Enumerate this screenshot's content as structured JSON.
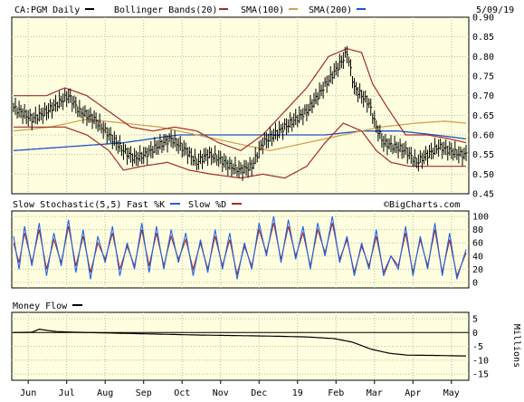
{
  "chart_data": [
    {
      "type": "line",
      "panel": "price",
      "header": {
        "symbol": "CA:PGM Daily",
        "bollinger": "Bollinger Bands(20)",
        "sma100": "SMA(100)",
        "sma200": "SMA(200)",
        "date": "5/09/19"
      },
      "x_labels": [
        "Jun",
        "Jul",
        "Aug",
        "Sep",
        "Oct",
        "Nov",
        "Dec",
        "19",
        "Feb",
        "Mar",
        "Apr",
        "May"
      ],
      "x_label_index": [
        8,
        29,
        50,
        71,
        92,
        113,
        134,
        155,
        176,
        197,
        218,
        239
      ],
      "n_bars": 248,
      "ylim": [
        0.45,
        0.9
      ],
      "yticks": [
        "0.90",
        "0.85",
        "0.80",
        "0.75",
        "0.70",
        "0.65",
        "0.60",
        "0.55",
        "0.50",
        "0.45"
      ],
      "ytick_values": [
        0.9,
        0.85,
        0.8,
        0.75,
        0.7,
        0.65,
        0.6,
        0.55,
        0.5,
        0.45
      ],
      "grid": true,
      "anchors_price": [
        [
          0,
          0.67
        ],
        [
          10,
          0.64
        ],
        [
          18,
          0.66
        ],
        [
          24,
          0.68
        ],
        [
          30,
          0.7
        ],
        [
          36,
          0.66
        ],
        [
          44,
          0.64
        ],
        [
          52,
          0.6
        ],
        [
          60,
          0.56
        ],
        [
          66,
          0.54
        ],
        [
          72,
          0.55
        ],
        [
          78,
          0.57
        ],
        [
          86,
          0.59
        ],
        [
          94,
          0.56
        ],
        [
          100,
          0.53
        ],
        [
          106,
          0.55
        ],
        [
          112,
          0.54
        ],
        [
          118,
          0.52
        ],
        [
          124,
          0.51
        ],
        [
          130,
          0.52
        ],
        [
          136,
          0.58
        ],
        [
          142,
          0.6
        ],
        [
          148,
          0.62
        ],
        [
          154,
          0.64
        ],
        [
          160,
          0.66
        ],
        [
          166,
          0.7
        ],
        [
          172,
          0.74
        ],
        [
          178,
          0.78
        ],
        [
          182,
          0.81
        ],
        [
          186,
          0.72
        ],
        [
          190,
          0.7
        ],
        [
          194,
          0.68
        ],
        [
          198,
          0.62
        ],
        [
          202,
          0.58
        ],
        [
          208,
          0.57
        ],
        [
          214,
          0.56
        ],
        [
          220,
          0.53
        ],
        [
          226,
          0.55
        ],
        [
          232,
          0.57
        ],
        [
          238,
          0.56
        ],
        [
          244,
          0.55
        ],
        [
          247,
          0.55
        ]
      ],
      "anchors_bb_upper": [
        [
          0,
          0.7
        ],
        [
          18,
          0.7
        ],
        [
          28,
          0.72
        ],
        [
          40,
          0.7
        ],
        [
          52,
          0.66
        ],
        [
          64,
          0.62
        ],
        [
          76,
          0.61
        ],
        [
          88,
          0.62
        ],
        [
          100,
          0.61
        ],
        [
          112,
          0.58
        ],
        [
          124,
          0.56
        ],
        [
          136,
          0.6
        ],
        [
          148,
          0.66
        ],
        [
          160,
          0.72
        ],
        [
          172,
          0.8
        ],
        [
          182,
          0.82
        ],
        [
          190,
          0.81
        ],
        [
          196,
          0.73
        ],
        [
          204,
          0.67
        ],
        [
          214,
          0.6
        ],
        [
          226,
          0.6
        ],
        [
          238,
          0.59
        ],
        [
          247,
          0.58
        ]
      ],
      "anchors_bb_lower": [
        [
          0,
          0.62
        ],
        [
          18,
          0.62
        ],
        [
          28,
          0.62
        ],
        [
          40,
          0.6
        ],
        [
          52,
          0.56
        ],
        [
          60,
          0.51
        ],
        [
          70,
          0.52
        ],
        [
          84,
          0.53
        ],
        [
          96,
          0.51
        ],
        [
          108,
          0.5
        ],
        [
          124,
          0.49
        ],
        [
          136,
          0.5
        ],
        [
          148,
          0.49
        ],
        [
          160,
          0.52
        ],
        [
          170,
          0.58
        ],
        [
          180,
          0.63
        ],
        [
          190,
          0.61
        ],
        [
          198,
          0.56
        ],
        [
          206,
          0.53
        ],
        [
          216,
          0.52
        ],
        [
          226,
          0.52
        ],
        [
          238,
          0.52
        ],
        [
          247,
          0.52
        ]
      ],
      "anchors_sma100": [
        [
          0,
          0.61
        ],
        [
          20,
          0.62
        ],
        [
          40,
          0.64
        ],
        [
          60,
          0.63
        ],
        [
          80,
          0.62
        ],
        [
          100,
          0.6
        ],
        [
          120,
          0.58
        ],
        [
          140,
          0.56
        ],
        [
          160,
          0.58
        ],
        [
          180,
          0.6
        ],
        [
          200,
          0.62
        ],
        [
          220,
          0.63
        ],
        [
          235,
          0.635
        ],
        [
          247,
          0.63
        ]
      ],
      "anchors_sma200": [
        [
          0,
          0.56
        ],
        [
          30,
          0.57
        ],
        [
          60,
          0.58
        ],
        [
          90,
          0.6
        ],
        [
          120,
          0.6
        ],
        [
          150,
          0.6
        ],
        [
          170,
          0.6
        ],
        [
          190,
          0.61
        ],
        [
          210,
          0.61
        ],
        [
          230,
          0.6
        ],
        [
          247,
          0.59
        ]
      ]
    },
    {
      "type": "line",
      "panel": "stochastic",
      "header": {
        "title": "Slow Stochastic(5,5)",
        "fast": "Fast %K",
        "slow": "Slow %D"
      },
      "ylim": [
        0,
        100
      ],
      "yticks": [
        "100",
        "80",
        "60",
        "40",
        "20",
        "0"
      ],
      "ytick_values": [
        100,
        80,
        60,
        40,
        20,
        0
      ],
      "grid": true,
      "brand": "©BigCharts.com",
      "anchors_fast": [
        [
          0,
          70
        ],
        [
          3,
          20
        ],
        [
          6,
          85
        ],
        [
          10,
          25
        ],
        [
          14,
          90
        ],
        [
          18,
          10
        ],
        [
          22,
          75
        ],
        [
          26,
          25
        ],
        [
          30,
          95
        ],
        [
          34,
          15
        ],
        [
          38,
          80
        ],
        [
          42,
          5
        ],
        [
          46,
          70
        ],
        [
          50,
          30
        ],
        [
          54,
          85
        ],
        [
          58,
          10
        ],
        [
          62,
          60
        ],
        [
          66,
          20
        ],
        [
          70,
          90
        ],
        [
          74,
          15
        ],
        [
          78,
          85
        ],
        [
          82,
          20
        ],
        [
          86,
          80
        ],
        [
          90,
          30
        ],
        [
          94,
          75
        ],
        [
          98,
          10
        ],
        [
          102,
          65
        ],
        [
          106,
          15
        ],
        [
          110,
          80
        ],
        [
          114,
          20
        ],
        [
          118,
          75
        ],
        [
          122,
          5
        ],
        [
          126,
          60
        ],
        [
          130,
          20
        ],
        [
          134,
          90
        ],
        [
          138,
          40
        ],
        [
          142,
          100
        ],
        [
          146,
          30
        ],
        [
          150,
          95
        ],
        [
          154,
          35
        ],
        [
          158,
          85
        ],
        [
          162,
          20
        ],
        [
          166,
          90
        ],
        [
          170,
          40
        ],
        [
          174,
          100
        ],
        [
          178,
          30
        ],
        [
          182,
          70
        ],
        [
          186,
          10
        ],
        [
          190,
          60
        ],
        [
          194,
          20
        ],
        [
          198,
          80
        ],
        [
          202,
          10
        ],
        [
          206,
          40
        ],
        [
          210,
          20
        ],
        [
          214,
          85
        ],
        [
          218,
          10
        ],
        [
          222,
          70
        ],
        [
          226,
          20
        ],
        [
          230,
          90
        ],
        [
          234,
          10
        ],
        [
          238,
          75
        ],
        [
          242,
          5
        ],
        [
          247,
          50
        ]
      ],
      "anchors_slow": [
        [
          0,
          60
        ],
        [
          3,
          30
        ],
        [
          6,
          75
        ],
        [
          10,
          30
        ],
        [
          14,
          80
        ],
        [
          18,
          20
        ],
        [
          22,
          65
        ],
        [
          26,
          30
        ],
        [
          30,
          85
        ],
        [
          34,
          25
        ],
        [
          38,
          70
        ],
        [
          42,
          15
        ],
        [
          46,
          60
        ],
        [
          50,
          35
        ],
        [
          54,
          75
        ],
        [
          58,
          20
        ],
        [
          62,
          55
        ],
        [
          66,
          25
        ],
        [
          70,
          80
        ],
        [
          74,
          25
        ],
        [
          78,
          75
        ],
        [
          82,
          25
        ],
        [
          86,
          70
        ],
        [
          90,
          35
        ],
        [
          94,
          65
        ],
        [
          98,
          20
        ],
        [
          102,
          60
        ],
        [
          106,
          20
        ],
        [
          110,
          70
        ],
        [
          114,
          25
        ],
        [
          118,
          65
        ],
        [
          122,
          12
        ],
        [
          126,
          55
        ],
        [
          130,
          25
        ],
        [
          134,
          80
        ],
        [
          138,
          45
        ],
        [
          142,
          90
        ],
        [
          146,
          35
        ],
        [
          150,
          85
        ],
        [
          154,
          40
        ],
        [
          158,
          75
        ],
        [
          162,
          25
        ],
        [
          166,
          80
        ],
        [
          170,
          45
        ],
        [
          174,
          90
        ],
        [
          178,
          35
        ],
        [
          182,
          65
        ],
        [
          186,
          15
        ],
        [
          190,
          55
        ],
        [
          194,
          25
        ],
        [
          198,
          70
        ],
        [
          202,
          15
        ],
        [
          206,
          40
        ],
        [
          210,
          25
        ],
        [
          214,
          75
        ],
        [
          218,
          15
        ],
        [
          222,
          65
        ],
        [
          226,
          25
        ],
        [
          230,
          80
        ],
        [
          234,
          15
        ],
        [
          238,
          65
        ],
        [
          242,
          10
        ],
        [
          247,
          45
        ]
      ]
    },
    {
      "type": "line",
      "panel": "money_flow",
      "header": {
        "title": "Money Flow"
      },
      "ylabel": "Millions",
      "ylim": [
        -15,
        5
      ],
      "yticks": [
        "5",
        "0",
        "-5",
        "-10",
        "-15"
      ],
      "ytick_values": [
        5,
        0,
        -5,
        -10,
        -15
      ],
      "grid": true,
      "anchors_mf": [
        [
          0,
          0
        ],
        [
          10,
          0.1
        ],
        [
          14,
          1.2
        ],
        [
          18,
          0.8
        ],
        [
          24,
          0.3
        ],
        [
          40,
          0.0
        ],
        [
          60,
          -0.3
        ],
        [
          80,
          -0.6
        ],
        [
          100,
          -0.9
        ],
        [
          120,
          -1.1
        ],
        [
          140,
          -1.3
        ],
        [
          160,
          -1.6
        ],
        [
          175,
          -2.2
        ],
        [
          185,
          -3.5
        ],
        [
          195,
          -6.0
        ],
        [
          205,
          -7.5
        ],
        [
          215,
          -8.2
        ],
        [
          230,
          -8.3
        ],
        [
          247,
          -8.5
        ]
      ]
    }
  ],
  "colors": {
    "price": "#000000",
    "bollinger": "#a52a2a",
    "sma100": "#d2a050",
    "sma200": "#1e50c8",
    "fast": "#1e64e6",
    "slow": "#a52a2a",
    "money_flow": "#000000",
    "background": "#ffffe0"
  }
}
